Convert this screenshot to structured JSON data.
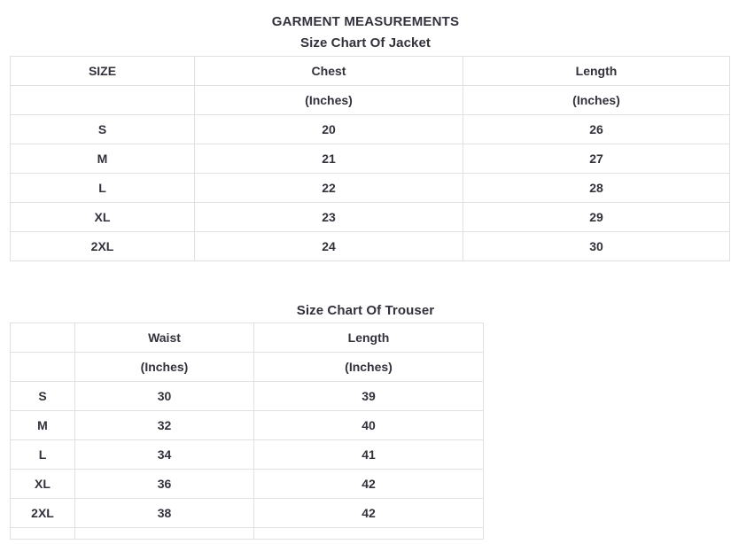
{
  "page": {
    "title": "GARMENT MEASUREMENTS"
  },
  "colors": {
    "text": "#32323c",
    "border": "#e0e0e0",
    "background": "#ffffff"
  },
  "jacket_table": {
    "title": "Size Chart Of Jacket",
    "columns": [
      "SIZE",
      "Chest",
      "Length"
    ],
    "units_row": [
      "",
      "(Inches)",
      "(Inches)"
    ],
    "rows": [
      [
        "S",
        "20",
        "26"
      ],
      [
        "M",
        "21",
        "27"
      ],
      [
        "L",
        "22",
        "28"
      ],
      [
        "XL",
        "23",
        "29"
      ],
      [
        "2XL",
        "24",
        "30"
      ]
    ]
  },
  "trouser_table": {
    "title": "Size Chart Of Trouser",
    "columns": [
      "",
      "Waist",
      "Length"
    ],
    "units_row": [
      "",
      "(Inches)",
      "(Inches)"
    ],
    "rows": [
      [
        "S",
        "30",
        "39"
      ],
      [
        "M",
        "32",
        "40"
      ],
      [
        "L",
        "34",
        "41"
      ],
      [
        "XL",
        "36",
        "42"
      ],
      [
        "2XL",
        "38",
        "42"
      ]
    ],
    "partial_row": [
      "",
      "",
      ""
    ]
  }
}
